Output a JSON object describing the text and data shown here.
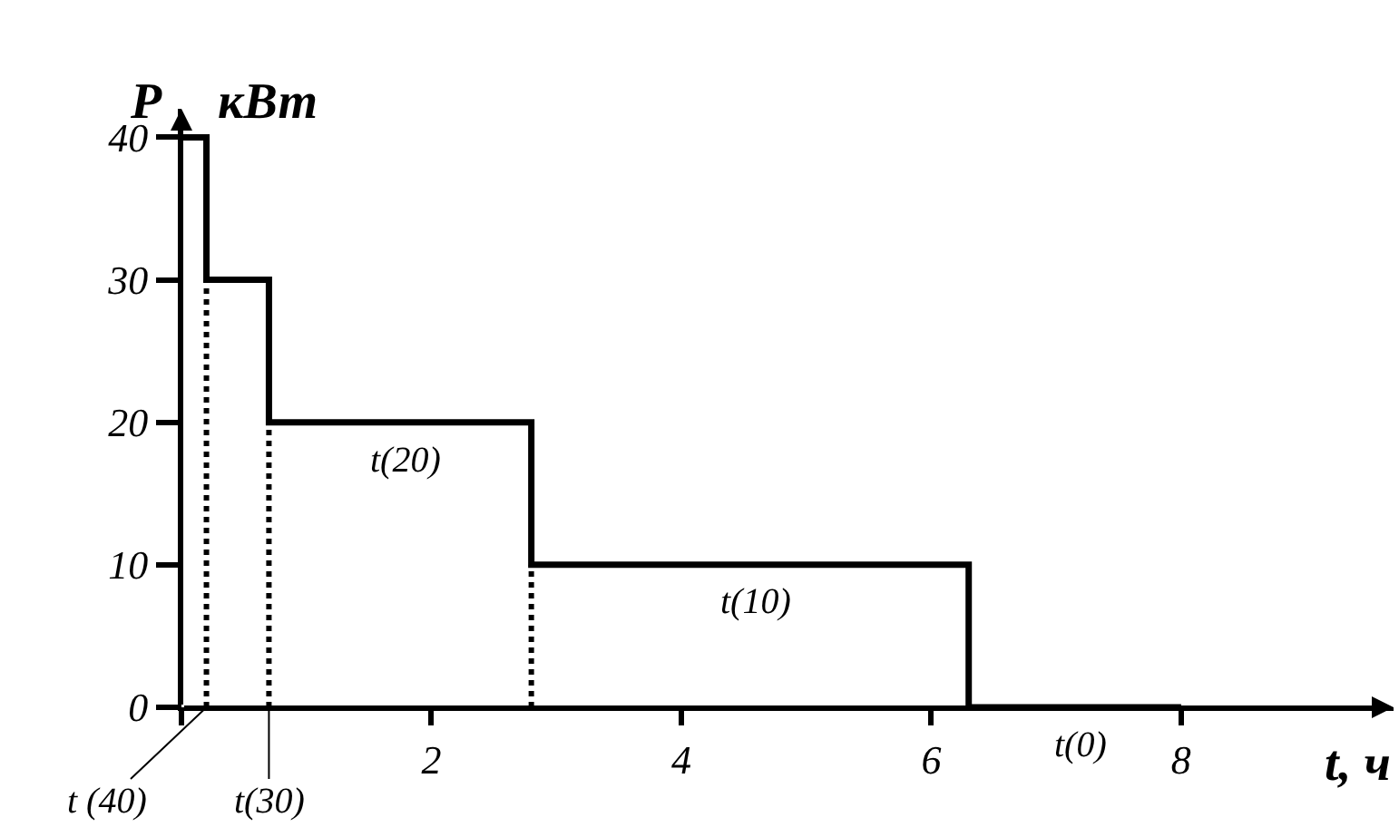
{
  "chart_data": {
    "type": "step",
    "xlabel": "t, ч",
    "ylabel": "P",
    "x": [
      0,
      0.2,
      0.7,
      2.8,
      6.3,
      8
    ],
    "series": [
      {
        "color": "#000000",
        "values": [
          40,
          30,
          20,
          10,
          0,
          0
        ]
      },
      {
        "type": "line",
        "line_style": "dotted",
        "color": "#000000",
        "x": [
          0.2,
          0.2
        ],
        "values": [
          0,
          30
        ]
      },
      {
        "type": "line",
        "line_style": "dotted",
        "color": "#000000",
        "x": [
          0.7,
          0.7
        ],
        "values": [
          0,
          20
        ]
      },
      {
        "type": "line",
        "line_style": "dotted",
        "color": "#000000",
        "x": [
          2.8,
          2.8
        ],
        "values": [
          0,
          10
        ]
      }
    ],
    "xlim": [
      0,
      9.7
    ],
    "ylim": [
      0,
      42
    ],
    "xticks": [
      {
        "value": 0,
        "label": null
      },
      2,
      4,
      6,
      8
    ],
    "yticks": [
      0,
      10,
      20,
      30,
      40
    ],
    "line_style": "solid",
    "marker": "none",
    "annotations": [
      "кВт",
      {
        "text": "t (40)",
        "x": 0.2,
        "y": 0
      },
      {
        "text": "t(30)",
        "x": 0.7,
        "y": 0
      },
      {
        "text": "t(20)",
        "x": 1.8,
        "y": 20
      },
      {
        "text": "t(10)",
        "x": 4.6,
        "y": 10
      },
      {
        "text": "t(0)",
        "x": 7.2,
        "y": 0
      }
    ]
  }
}
